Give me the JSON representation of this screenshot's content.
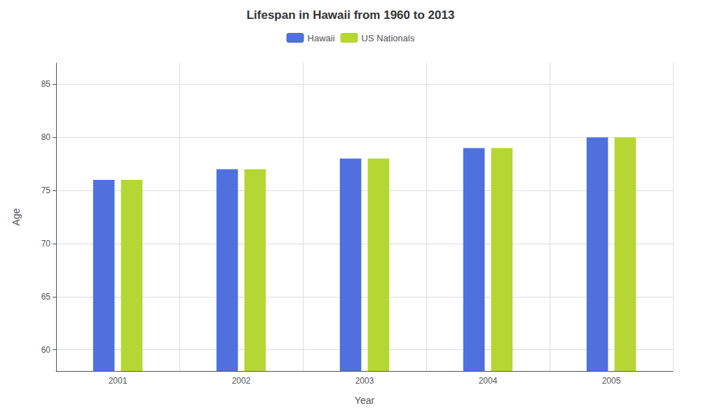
{
  "chart_data": {
    "type": "bar",
    "title": "Lifespan in Hawaii from 1960 to 2013",
    "xlabel": "Year",
    "ylabel": "Age",
    "categories": [
      "2001",
      "2002",
      "2003",
      "2004",
      "2005"
    ],
    "series": [
      {
        "name": "Hawaii",
        "values": [
          76,
          77,
          78,
          79,
          80
        ]
      },
      {
        "name": "US Nationals",
        "values": [
          76,
          77,
          78,
          79,
          80
        ]
      }
    ],
    "ylim": [
      58,
      87
    ],
    "yticks": [
      60,
      65,
      70,
      75,
      80,
      85
    ],
    "grid": true,
    "legend": "top"
  }
}
